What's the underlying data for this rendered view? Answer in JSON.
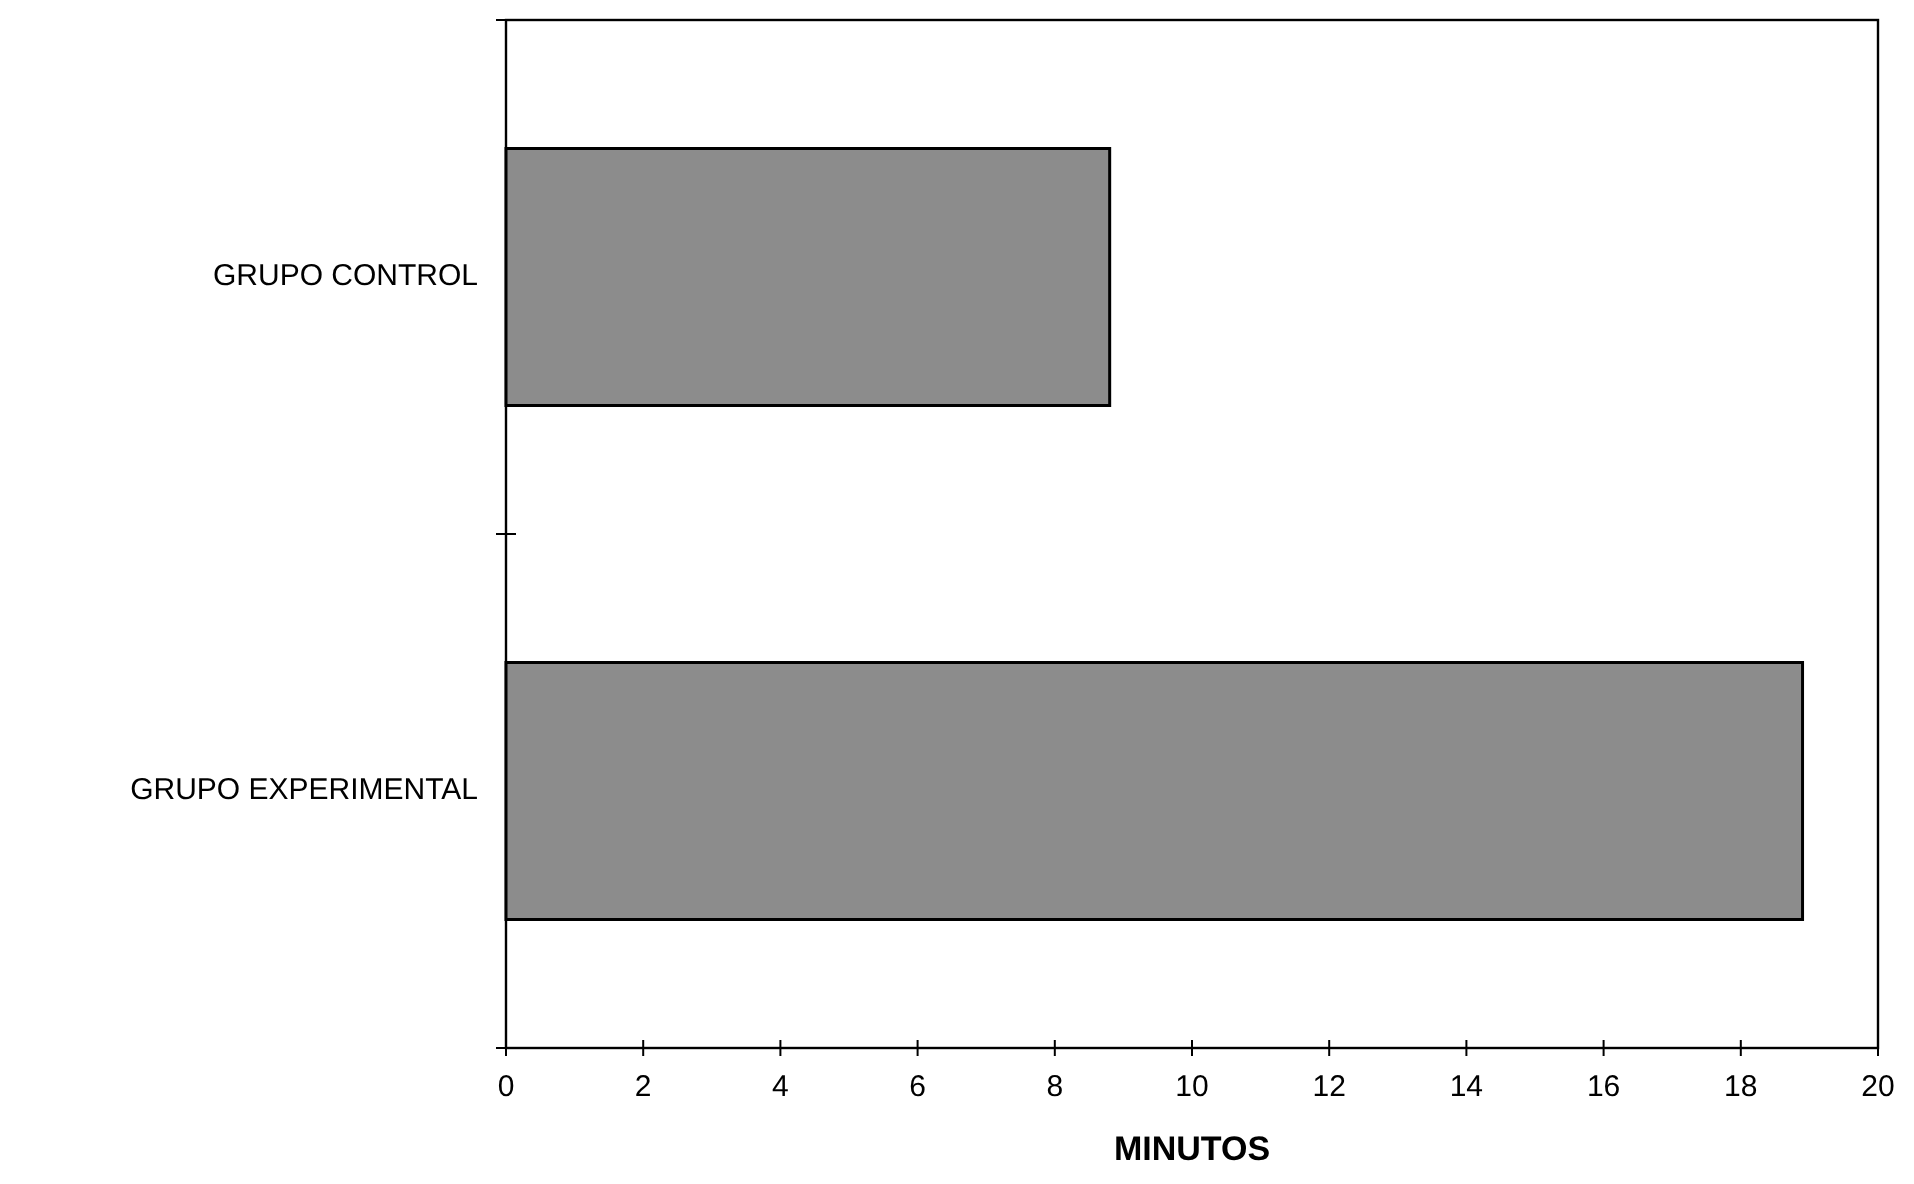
{
  "chart_data": {
    "type": "bar",
    "orientation": "horizontal",
    "categories": [
      "GRUPO CONTROL",
      "GRUPO EXPERIMENTAL"
    ],
    "values": [
      8.8,
      18.9
    ],
    "color": "#8c8c8c",
    "xlim": [
      0,
      20
    ],
    "xticks": [
      0,
      2,
      4,
      6,
      8,
      10,
      12,
      14,
      16,
      18,
      20
    ],
    "xlabel": "MINUTOS",
    "grid": false
  }
}
